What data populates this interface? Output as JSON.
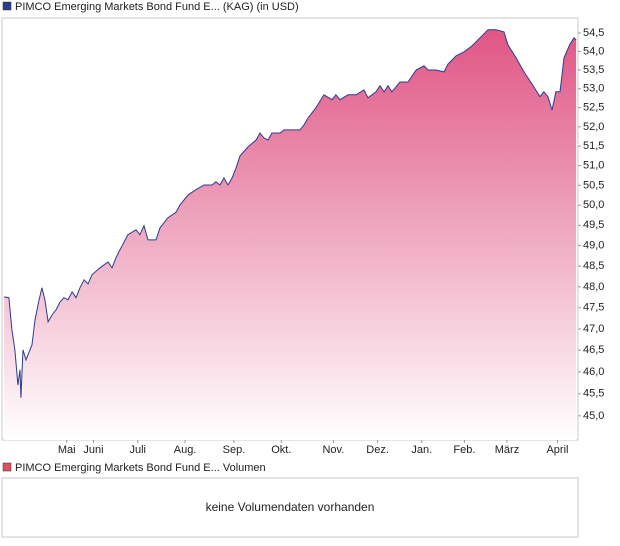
{
  "chart_data": {
    "type": "area",
    "series": [
      {
        "name": "PIMCO Emerging Markets Bond Fund E... (KAG) (in USD)",
        "color": "#2b3b8f",
        "fill": "#e05585",
        "x": [
          1.3,
          4.4,
          6.3,
          8.2,
          10.1,
          11.4,
          12.0,
          13.3,
          15.2,
          19.0,
          20.9,
          22.8,
          25.3,
          27.2,
          29.2,
          31.7,
          34.2,
          36.8,
          39.3,
          41.8,
          44.4,
          46.9,
          49.4,
          52.0,
          54.5,
          57.0,
          62.1,
          67.2,
          69.7,
          72.2,
          74.8,
          79.8,
          84.9,
          87.4,
          90.0,
          92.5,
          97.6,
          100.1,
          105.2,
          110.3,
          112.8,
          117.9,
          122.9,
          128.0,
          133.1,
          135.6,
          138.1,
          140.7,
          143.2,
          145.8,
          148.3,
          150.8,
          155.9,
          161.0,
          163.5,
          166.0,
          168.6,
          171.1,
          176.2,
          178.7,
          188.8,
          191.4,
          193.9,
          199.0,
          204.0,
          209.1,
          211.6,
          214.2,
          219.3,
          224.3,
          229.4,
          231.9,
          237.0,
          239.5,
          242.1,
          244.6,
          247.1,
          252.2,
          257.3,
          262.4,
          267.4,
          270.0,
          275.0,
          280.1,
          282.6,
          287.7,
          292.8,
          297.8,
          302.9,
          308.0,
          313.0,
          318.1,
          320.6,
          325.7,
          330.8,
          335.8,
          340.9,
          343.4,
          346.0,
          348.5,
          351.0,
          353.6,
          356.1,
          359.9,
          362.5,
          363.8
        ],
        "values": [
          47.76,
          47.74,
          46.98,
          46.51,
          45.7,
          46.05,
          45.41,
          46.51,
          46.28,
          46.63,
          47.21,
          47.57,
          47.98,
          47.69,
          47.17,
          47.33,
          47.45,
          47.64,
          47.74,
          47.69,
          47.88,
          47.74,
          47.98,
          48.17,
          48.07,
          48.29,
          48.46,
          48.6,
          48.46,
          48.7,
          48.9,
          49.27,
          49.39,
          49.27,
          49.49,
          49.14,
          49.14,
          49.44,
          49.69,
          49.83,
          50.01,
          50.26,
          50.39,
          50.51,
          50.51,
          50.59,
          50.51,
          50.69,
          50.51,
          50.69,
          50.94,
          51.25,
          51.48,
          51.66,
          51.84,
          51.71,
          51.66,
          51.84,
          51.84,
          51.92,
          51.92,
          52.05,
          52.23,
          52.5,
          52.84,
          52.71,
          52.84,
          52.71,
          52.84,
          52.84,
          52.97,
          52.76,
          52.92,
          53.08,
          52.92,
          53.08,
          52.92,
          53.18,
          53.18,
          53.5,
          53.61,
          53.5,
          53.5,
          53.45,
          53.66,
          53.88,
          53.99,
          54.15,
          54.37,
          54.59,
          54.59,
          54.53,
          54.18,
          53.83,
          53.45,
          53.13,
          52.79,
          52.92,
          52.79,
          52.44,
          52.92,
          52.92,
          53.83,
          54.2,
          54.37,
          54.31
        ]
      }
    ],
    "xlim": [
      0,
      365
    ],
    "xticks": [
      {
        "value": 41,
        "label": "Mai"
      },
      {
        "value": 58,
        "label": "Juni"
      },
      {
        "value": 86,
        "label": "Juli"
      },
      {
        "value": 116,
        "label": "Aug."
      },
      {
        "value": 147,
        "label": "Sep."
      },
      {
        "value": 177,
        "label": "Okt."
      },
      {
        "value": 210,
        "label": "Nov."
      },
      {
        "value": 238,
        "label": "Dez."
      },
      {
        "value": 266,
        "label": "Jan."
      },
      {
        "value": 293,
        "label": "Feb."
      },
      {
        "value": 320,
        "label": "März"
      },
      {
        "value": 352,
        "label": "April"
      }
    ],
    "ylim": [
      44.46,
      54.91
    ],
    "log_scale": true,
    "yticks": [
      {
        "value": 45,
        "label": "45,0"
      },
      {
        "value": 45.5,
        "label": "45,5"
      },
      {
        "value": 46,
        "label": "46,0"
      },
      {
        "value": 46.5,
        "label": "46,5"
      },
      {
        "value": 47,
        "label": "47,0"
      },
      {
        "value": 47.5,
        "label": "47,5"
      },
      {
        "value": 48,
        "label": "48,0"
      },
      {
        "value": 48.5,
        "label": "48,5"
      },
      {
        "value": 49,
        "label": "49,0"
      },
      {
        "value": 49.5,
        "label": "49,5"
      },
      {
        "value": 50,
        "label": "50,0"
      },
      {
        "value": 50.5,
        "label": "50,5"
      },
      {
        "value": 51,
        "label": "51,0"
      },
      {
        "value": 51.5,
        "label": "51,5"
      },
      {
        "value": 52,
        "label": "52,0"
      },
      {
        "value": 52.5,
        "label": "52,5"
      },
      {
        "value": 53,
        "label": "53,0"
      },
      {
        "value": 53.5,
        "label": "53,5"
      },
      {
        "value": 54,
        "label": "54,0"
      },
      {
        "value": 54.5,
        "label": "54,5"
      }
    ]
  },
  "volume_panel": {
    "legend": "PIMCO Emerging Markets Bond Fund E... Volumen",
    "color": "#d9535f",
    "message": "keine Volumendaten vorhanden"
  }
}
